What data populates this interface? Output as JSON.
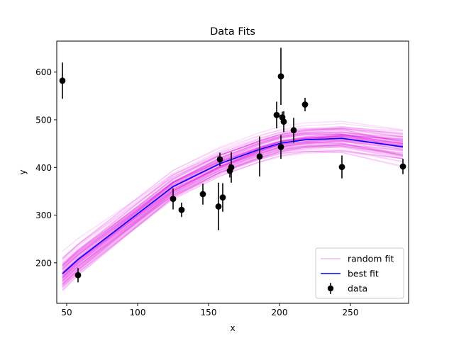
{
  "chart_data": {
    "type": "scatter",
    "title": "Data Fits",
    "xlabel": "x",
    "ylabel": "y",
    "xlim": [
      43,
      291
    ],
    "ylim": [
      115,
      665
    ],
    "xticks": [
      50,
      100,
      150,
      200,
      250
    ],
    "yticks": [
      200,
      300,
      400,
      500,
      600
    ],
    "grid": false,
    "legend_position": "lower-right",
    "legend": {
      "random_fit": "random fit",
      "best_fit": "best fit",
      "data": "data"
    },
    "colors": {
      "random_fit": "#dd00dd",
      "random_fit_legend": "#f1b8f1",
      "best_fit": "#0000ff",
      "data": "#000000"
    },
    "data_points": [
      {
        "x": 47,
        "y": 582,
        "err": 38
      },
      {
        "x": 58,
        "y": 174,
        "err": 15
      },
      {
        "x": 125,
        "y": 334,
        "err": 22
      },
      {
        "x": 131,
        "y": 311,
        "err": 15
      },
      {
        "x": 146,
        "y": 344,
        "err": 22
      },
      {
        "x": 157,
        "y": 318,
        "err": 50
      },
      {
        "x": 158,
        "y": 417,
        "err": 14
      },
      {
        "x": 160,
        "y": 337,
        "err": 30
      },
      {
        "x": 165,
        "y": 393,
        "err": 14
      },
      {
        "x": 166,
        "y": 400,
        "err": 32
      },
      {
        "x": 186,
        "y": 423,
        "err": 42
      },
      {
        "x": 198,
        "y": 510,
        "err": 28
      },
      {
        "x": 201,
        "y": 443,
        "err": 25
      },
      {
        "x": 201,
        "y": 591,
        "err": 60
      },
      {
        "x": 202,
        "y": 505,
        "err": 12
      },
      {
        "x": 203,
        "y": 496,
        "err": 22
      },
      {
        "x": 210,
        "y": 478,
        "err": 26
      },
      {
        "x": 218,
        "y": 532,
        "err": 14
      },
      {
        "x": 244,
        "y": 401,
        "err": 24
      },
      {
        "x": 287,
        "y": 402,
        "err": 16
      }
    ],
    "best_fit": {
      "x": [
        47,
        58,
        125,
        158,
        186,
        201,
        218,
        244,
        287
      ],
      "y": [
        177,
        207,
        360,
        408,
        438,
        451,
        458,
        461,
        443
      ]
    }
  }
}
